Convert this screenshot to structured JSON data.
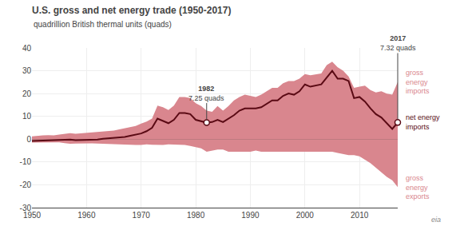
{
  "chart_data": {
    "type": "area",
    "title": "U.S. gross and net energy trade (1950-2017)",
    "subtitle": "quadrillion British thermal units (quads)",
    "caption": "eia",
    "x": [
      1950,
      1951,
      1952,
      1953,
      1954,
      1955,
      1956,
      1957,
      1958,
      1959,
      1960,
      1961,
      1962,
      1963,
      1964,
      1965,
      1966,
      1967,
      1968,
      1969,
      1970,
      1971,
      1972,
      1973,
      1974,
      1975,
      1976,
      1977,
      1978,
      1979,
      1980,
      1981,
      1982,
      1983,
      1984,
      1985,
      1986,
      1987,
      1988,
      1989,
      1990,
      1991,
      1992,
      1993,
      1994,
      1995,
      1996,
      1997,
      1998,
      1999,
      2000,
      2001,
      2002,
      2003,
      2004,
      2005,
      2006,
      2007,
      2008,
      2009,
      2010,
      2011,
      2012,
      2013,
      2014,
      2015,
      2016,
      2017
    ],
    "series": [
      {
        "name": "gross\nenergy\nimports",
        "type": "area",
        "color": "#d9868e",
        "values": [
          1.2,
          1.5,
          1.7,
          1.8,
          1.7,
          2.0,
          2.3,
          2.6,
          2.4,
          2.6,
          2.7,
          2.8,
          3.0,
          3.3,
          3.5,
          3.8,
          4.3,
          4.8,
          5.3,
          5.8,
          6.8,
          7.7,
          9.0,
          14.7,
          14.0,
          12.8,
          14.7,
          18.5,
          18.5,
          18.0,
          15.8,
          14.5,
          12.5,
          12.0,
          14.5,
          12.5,
          14.5,
          17.0,
          18.5,
          19.5,
          19.0,
          18.5,
          19.5,
          21.0,
          22.5,
          22.5,
          24.5,
          25.5,
          25.5,
          26.5,
          28.5,
          28.0,
          28.5,
          28.8,
          32.5,
          34.0,
          31.5,
          30.0,
          27.5,
          22.5,
          23.0,
          23.5,
          21.5,
          20.5,
          21.0,
          20.0,
          19.5,
          25.0
        ]
      },
      {
        "name": "gross\nenergy\nexports",
        "type": "area",
        "color": "#d9868e",
        "values": [
          -1.5,
          -1.5,
          -1.5,
          -1.5,
          -1.4,
          -1.4,
          -1.7,
          -2.0,
          -1.9,
          -1.8,
          -1.8,
          -1.8,
          -1.9,
          -2.0,
          -2.1,
          -2.2,
          -2.3,
          -2.5,
          -2.5,
          -2.5,
          -2.5,
          -2.3,
          -2.4,
          -2.5,
          -2.5,
          -2.3,
          -2.3,
          -2.3,
          -2.5,
          -3.0,
          -3.5,
          -4.0,
          -5.5,
          -5.0,
          -4.5,
          -4.5,
          -5.5,
          -5.5,
          -5.5,
          -5.5,
          -5.5,
          -5.0,
          -5.5,
          -5.5,
          -5.5,
          -5.5,
          -5.5,
          -5.5,
          -5.5,
          -5.5,
          -5.5,
          -5.5,
          -5.5,
          -5.5,
          -5.5,
          -5.5,
          -6.0,
          -6.5,
          -7.0,
          -7.0,
          -7.5,
          -9.0,
          -10.5,
          -12.5,
          -14.5,
          -16.5,
          -18.0,
          -21.0
        ]
      },
      {
        "name": "net energy\nimports",
        "type": "line",
        "color": "#5a0a14",
        "values": [
          -0.8,
          -0.7,
          -0.6,
          -0.5,
          -0.5,
          -0.4,
          -0.3,
          -0.2,
          -0.4,
          -0.3,
          -0.3,
          -0.2,
          -0.2,
          0.2,
          0.4,
          0.5,
          0.8,
          1.0,
          1.5,
          2.0,
          2.5,
          3.5,
          5.0,
          9.0,
          8.0,
          7.0,
          8.5,
          11.5,
          11.5,
          11.0,
          8.5,
          8.0,
          7.25,
          7.5,
          8.5,
          7.5,
          9.0,
          10.5,
          12.5,
          13.5,
          13.5,
          13.5,
          14.0,
          15.5,
          17.0,
          17.0,
          19.0,
          20.0,
          19.5,
          21.0,
          24.0,
          23.0,
          23.5,
          24.0,
          27.0,
          30.0,
          26.5,
          26.5,
          25.5,
          18.0,
          18.5,
          16.5,
          13.5,
          11.0,
          9.5,
          7.0,
          4.5,
          7.32
        ]
      }
    ],
    "annotations": [
      {
        "x": 1982,
        "y": 7.25,
        "label": "1982",
        "text": "7.25 quads"
      },
      {
        "x": 2017,
        "y": 7.32,
        "label": "2017",
        "text": "7.32 quads"
      }
    ],
    "xlim": [
      1950,
      2017
    ],
    "ylim": [
      -30,
      40
    ],
    "xticks": [
      1950,
      1960,
      1970,
      1980,
      1990,
      2000,
      2010
    ],
    "yticks": [
      -30,
      -20,
      -10,
      0,
      10,
      20,
      30,
      40
    ],
    "grid": true
  }
}
